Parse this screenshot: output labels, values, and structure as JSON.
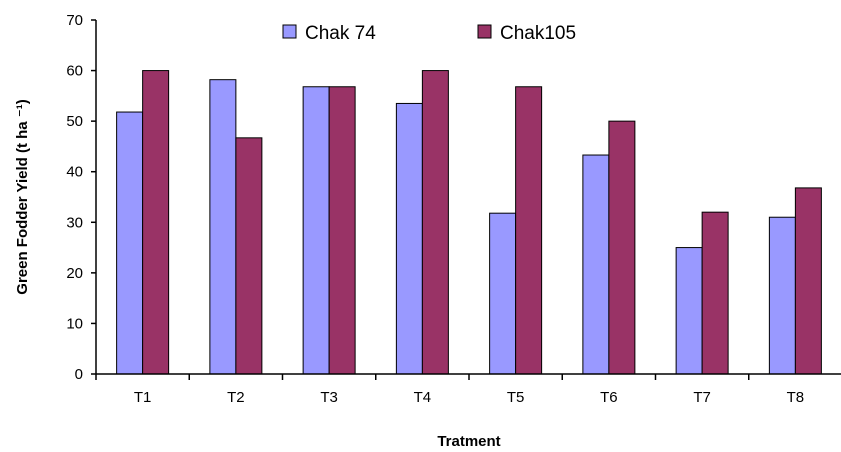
{
  "chart_data": {
    "type": "bar",
    "categories": [
      "T1",
      "T2",
      "T3",
      "T4",
      "T5",
      "T6",
      "T7",
      "T8"
    ],
    "series": [
      {
        "name": "Chak 74",
        "color": "#9999ff",
        "values": [
          51.8,
          58.2,
          56.8,
          53.5,
          31.8,
          43.3,
          25.0,
          31.0
        ]
      },
      {
        "name": "Chak105",
        "color": "#993366",
        "values": [
          60.0,
          46.7,
          56.8,
          60.0,
          56.8,
          50.0,
          32.0,
          36.8
        ]
      }
    ],
    "xlabel": "Tratment",
    "ylabel": "Green Fodder Yield (t ha ⁻¹)",
    "ylim": [
      0,
      70
    ],
    "yticks": [
      0,
      10,
      20,
      30,
      40,
      50,
      60,
      70
    ],
    "grid": false,
    "legend_position": "top-center"
  }
}
